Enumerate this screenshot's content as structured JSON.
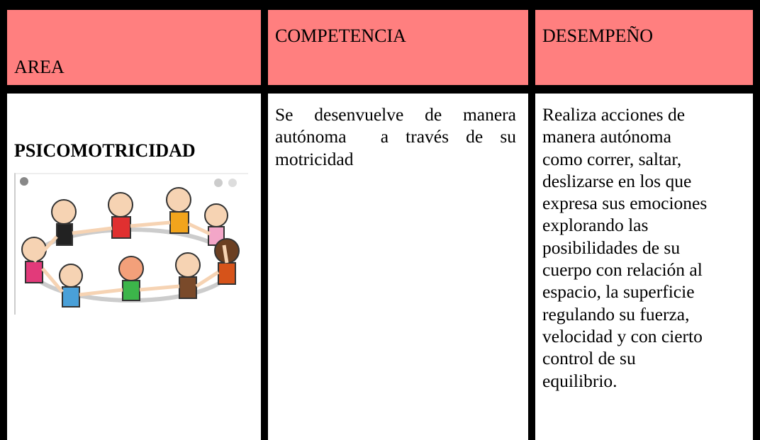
{
  "table": {
    "header": [
      "AREA",
      "COMPETENCIA",
      "DESEMPEÑO"
    ],
    "rows": [
      {
        "area": "PSICOMOTRICIDAD",
        "competencia": [
          "Se desenvuelve de manera",
          "autónoma  a través de su",
          "motricidad"
        ],
        "desempeno": [
          "Realiza acciones de",
          "manera autónoma",
          "como correr, saltar,",
          "deslizarse en los que",
          "expresa sus emociones",
          "explorando las",
          "posibilidades de su",
          "cuerpo con relación al",
          "espacio, la superficie",
          "regulando su fuerza,",
          "velocidad y con cierto",
          "control de su",
          "equilibrio."
        ]
      }
    ]
  }
}
